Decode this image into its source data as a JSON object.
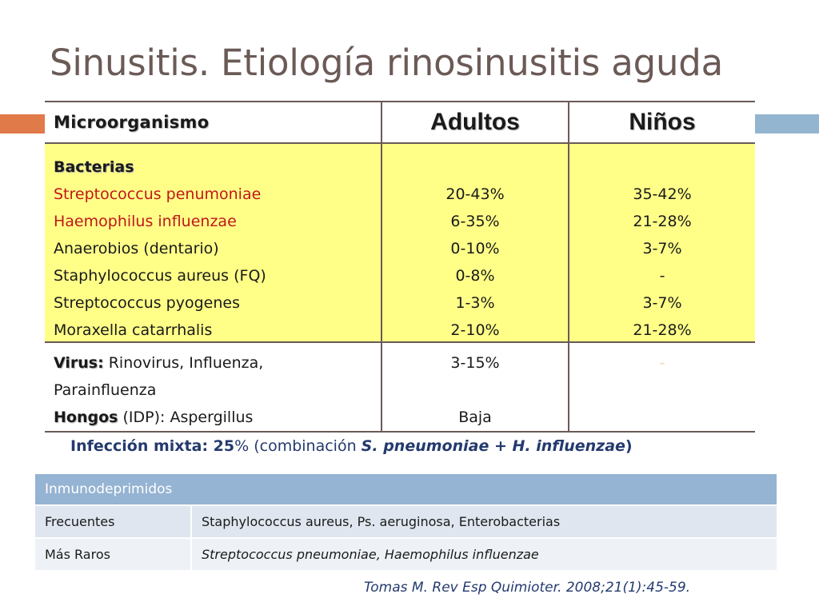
{
  "slide_title": "Sinusitis. Etiología rinosinusitis aguda",
  "colors": {
    "title": "#6b5a56",
    "bacteria_bg": "#ffff88",
    "red_text": "#c0171a",
    "blue_text": "#243a6e",
    "accent_orange": "#e07a48",
    "accent_blue": "#94b5d0",
    "immuno_header": "#95b3d2"
  },
  "main_table": {
    "headers": {
      "micro": "Microorganismo",
      "adults": "Adultos",
      "children": "Niños"
    },
    "bacteria": {
      "group_label": "Bacterias",
      "rows": [
        {
          "name": "Streptococcus penumoniae",
          "adults": "20-43%",
          "children": "35-42%"
        },
        {
          "name": "Haemophilus influenzae",
          "adults": "6-35%",
          "children": "21-28%"
        },
        {
          "name": "Anaerobios (dentario)",
          "adults": "0-10%",
          "children": "3-7%"
        },
        {
          "name": "Staphylococcus aureus (FQ)",
          "adults": "0-8%",
          "children": "-"
        },
        {
          "name": "Streptococcus pyogenes",
          "adults": "1-3%",
          "children": "3-7%"
        },
        {
          "name": "Moraxella catarrhalis",
          "adults": "2-10%",
          "children": "21-28%"
        }
      ]
    },
    "virus": {
      "label": "Virus:",
      "text": " Rinovirus, Influenza, Parainfluenza",
      "adults": "3-15%",
      "children": "-"
    },
    "fungi": {
      "label": "Hongos",
      "text": " (IDP): Aspergillus",
      "adults": "Baja"
    }
  },
  "mixed_infection": {
    "part1": "Infección mixta: 25",
    "percent": "%",
    "part2": " (combinación ",
    "org1": "S. pneumoniae",
    "plus": " + ",
    "org2": "H. influenzae",
    "close": ")"
  },
  "immuno_table": {
    "header": "Inmunodeprimidos",
    "rows": [
      {
        "label": "Frecuentes",
        "value": "Staphylococcus aureus, Ps. aeruginosa, Enterobacterias"
      },
      {
        "label": "Más Raros",
        "value": "Streptococcus pneumoniae, Haemophilus influenzae"
      }
    ]
  },
  "citation": "Tomas M. Rev Esp Quimioter. 2008;21(1):45-59."
}
